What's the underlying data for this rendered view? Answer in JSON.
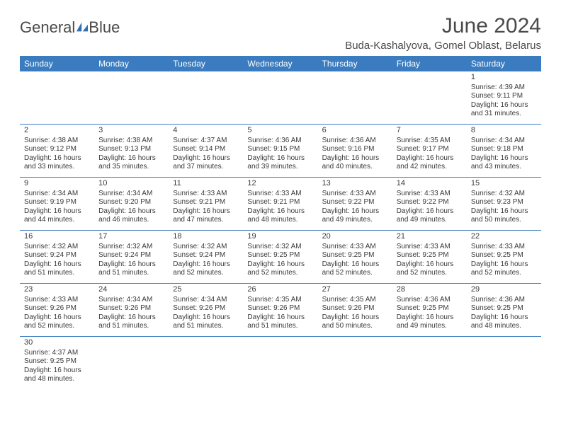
{
  "logo": {
    "text1": "General",
    "text2": "Blue",
    "sail_color": "#2e6fb5"
  },
  "title": "June 2024",
  "location": "Buda-Kashalyova, Gomel Oblast, Belarus",
  "colors": {
    "header_bg": "#3a7cbf",
    "header_fg": "#ffffff",
    "text": "#3a3a3a",
    "rule": "#3a7cbf"
  },
  "weekdays": [
    "Sunday",
    "Monday",
    "Tuesday",
    "Wednesday",
    "Thursday",
    "Friday",
    "Saturday"
  ],
  "weeks": [
    [
      null,
      null,
      null,
      null,
      null,
      null,
      {
        "n": "1",
        "sr": "4:39 AM",
        "ss": "9:11 PM",
        "dl": "16 hours and 31 minutes."
      }
    ],
    [
      {
        "n": "2",
        "sr": "4:38 AM",
        "ss": "9:12 PM",
        "dl": "16 hours and 33 minutes."
      },
      {
        "n": "3",
        "sr": "4:38 AM",
        "ss": "9:13 PM",
        "dl": "16 hours and 35 minutes."
      },
      {
        "n": "4",
        "sr": "4:37 AM",
        "ss": "9:14 PM",
        "dl": "16 hours and 37 minutes."
      },
      {
        "n": "5",
        "sr": "4:36 AM",
        "ss": "9:15 PM",
        "dl": "16 hours and 39 minutes."
      },
      {
        "n": "6",
        "sr": "4:36 AM",
        "ss": "9:16 PM",
        "dl": "16 hours and 40 minutes."
      },
      {
        "n": "7",
        "sr": "4:35 AM",
        "ss": "9:17 PM",
        "dl": "16 hours and 42 minutes."
      },
      {
        "n": "8",
        "sr": "4:34 AM",
        "ss": "9:18 PM",
        "dl": "16 hours and 43 minutes."
      }
    ],
    [
      {
        "n": "9",
        "sr": "4:34 AM",
        "ss": "9:19 PM",
        "dl": "16 hours and 44 minutes."
      },
      {
        "n": "10",
        "sr": "4:34 AM",
        "ss": "9:20 PM",
        "dl": "16 hours and 46 minutes."
      },
      {
        "n": "11",
        "sr": "4:33 AM",
        "ss": "9:21 PM",
        "dl": "16 hours and 47 minutes."
      },
      {
        "n": "12",
        "sr": "4:33 AM",
        "ss": "9:21 PM",
        "dl": "16 hours and 48 minutes."
      },
      {
        "n": "13",
        "sr": "4:33 AM",
        "ss": "9:22 PM",
        "dl": "16 hours and 49 minutes."
      },
      {
        "n": "14",
        "sr": "4:33 AM",
        "ss": "9:22 PM",
        "dl": "16 hours and 49 minutes."
      },
      {
        "n": "15",
        "sr": "4:32 AM",
        "ss": "9:23 PM",
        "dl": "16 hours and 50 minutes."
      }
    ],
    [
      {
        "n": "16",
        "sr": "4:32 AM",
        "ss": "9:24 PM",
        "dl": "16 hours and 51 minutes."
      },
      {
        "n": "17",
        "sr": "4:32 AM",
        "ss": "9:24 PM",
        "dl": "16 hours and 51 minutes."
      },
      {
        "n": "18",
        "sr": "4:32 AM",
        "ss": "9:24 PM",
        "dl": "16 hours and 52 minutes."
      },
      {
        "n": "19",
        "sr": "4:32 AM",
        "ss": "9:25 PM",
        "dl": "16 hours and 52 minutes."
      },
      {
        "n": "20",
        "sr": "4:33 AM",
        "ss": "9:25 PM",
        "dl": "16 hours and 52 minutes."
      },
      {
        "n": "21",
        "sr": "4:33 AM",
        "ss": "9:25 PM",
        "dl": "16 hours and 52 minutes."
      },
      {
        "n": "22",
        "sr": "4:33 AM",
        "ss": "9:25 PM",
        "dl": "16 hours and 52 minutes."
      }
    ],
    [
      {
        "n": "23",
        "sr": "4:33 AM",
        "ss": "9:26 PM",
        "dl": "16 hours and 52 minutes."
      },
      {
        "n": "24",
        "sr": "4:34 AM",
        "ss": "9:26 PM",
        "dl": "16 hours and 51 minutes."
      },
      {
        "n": "25",
        "sr": "4:34 AM",
        "ss": "9:26 PM",
        "dl": "16 hours and 51 minutes."
      },
      {
        "n": "26",
        "sr": "4:35 AM",
        "ss": "9:26 PM",
        "dl": "16 hours and 51 minutes."
      },
      {
        "n": "27",
        "sr": "4:35 AM",
        "ss": "9:26 PM",
        "dl": "16 hours and 50 minutes."
      },
      {
        "n": "28",
        "sr": "4:36 AM",
        "ss": "9:25 PM",
        "dl": "16 hours and 49 minutes."
      },
      {
        "n": "29",
        "sr": "4:36 AM",
        "ss": "9:25 PM",
        "dl": "16 hours and 48 minutes."
      }
    ],
    [
      {
        "n": "30",
        "sr": "4:37 AM",
        "ss": "9:25 PM",
        "dl": "16 hours and 48 minutes."
      },
      null,
      null,
      null,
      null,
      null,
      null
    ]
  ],
  "labels": {
    "sunrise": "Sunrise: ",
    "sunset": "Sunset: ",
    "daylight": "Daylight: "
  }
}
